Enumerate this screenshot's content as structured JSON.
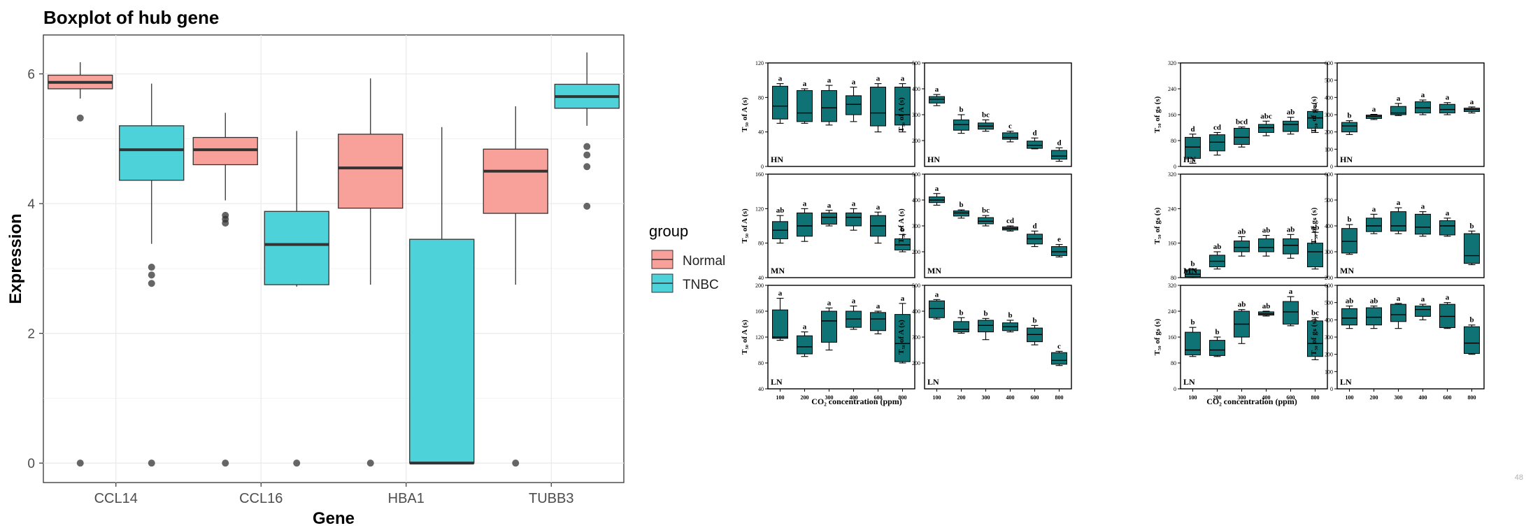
{
  "chart_data": [
    {
      "type": "boxplot",
      "title": "Boxplot of hub gene",
      "xlabel": "Gene",
      "ylabel": "Expression",
      "ylim": [
        -0.3,
        6.6
      ],
      "yticks": [
        0,
        2,
        4,
        6
      ],
      "grid": true,
      "legend": {
        "title": "group",
        "position": "right",
        "entries": [
          "Normal",
          "TNBC"
        ]
      },
      "colors": {
        "Normal": "#f8a19a",
        "TNBC": "#4dd2d9"
      },
      "categories": [
        "CCL14",
        "CCL16",
        "HBA1",
        "TUBB3"
      ],
      "series": [
        {
          "name": "Normal",
          "boxes": [
            {
              "q1": 5.77,
              "median": 5.87,
              "q3": 5.98,
              "wlo": 5.62,
              "whi": 6.18,
              "out": [
                5.32,
                0
              ]
            },
            {
              "q1": 4.6,
              "median": 4.83,
              "q3": 5.02,
              "wlo": 4.05,
              "whi": 5.4,
              "out": [
                3.82,
                3.76,
                3.7,
                0
              ]
            },
            {
              "q1": 3.93,
              "median": 4.55,
              "q3": 5.07,
              "wlo": 2.75,
              "whi": 5.93,
              "out": [
                0
              ]
            },
            {
              "q1": 3.85,
              "median": 4.5,
              "q3": 4.84,
              "wlo": 2.75,
              "whi": 5.5,
              "out": [
                0
              ]
            }
          ]
        },
        {
          "name": "TNBC",
          "boxes": [
            {
              "q1": 4.36,
              "median": 4.83,
              "q3": 5.2,
              "wlo": 3.38,
              "whi": 5.85,
              "out": [
                3.02,
                2.9,
                2.77,
                0
              ]
            },
            {
              "q1": 2.75,
              "median": 3.37,
              "q3": 3.88,
              "wlo": 2.72,
              "whi": 5.12,
              "out": [
                0
              ]
            },
            {
              "q1": 0.0,
              "median": 0.0,
              "q3": 3.45,
              "wlo": 0.0,
              "whi": 5.18,
              "out": []
            },
            {
              "q1": 5.47,
              "median": 5.65,
              "q3": 5.84,
              "wlo": 5.2,
              "whi": 6.33,
              "out": [
                4.88,
                4.75,
                4.57,
                3.96
              ]
            }
          ]
        }
      ]
    },
    {
      "type": "boxplot-grid",
      "color": "#0f7376",
      "xticks": [
        "100",
        "200",
        "300",
        "400",
        "600",
        "800"
      ],
      "xlabel_left": "CO₂ concentration (ppm)",
      "xlabel_right": "CO₂ concentration (ppm)",
      "corner_mark": "48",
      "panels": [
        {
          "label": "HN",
          "ylabel": "T₅₀ of A (s)",
          "ylim": [
            0,
            120
          ],
          "yticks": [
            0,
            40,
            80,
            120
          ],
          "letters": [
            "a",
            "a",
            "a",
            "a",
            "a",
            "a"
          ],
          "boxes": [
            [
              50,
              55,
              70,
              93,
              96
            ],
            [
              50,
              52,
              62,
              88,
              90
            ],
            [
              48,
              52,
              68,
              88,
              94
            ],
            [
              52,
              60,
              72,
              82,
              92
            ],
            [
              40,
              47,
              62,
              92,
              96
            ],
            [
              40,
              48,
              60,
              92,
              96
            ]
          ]
        },
        {
          "label": "HN",
          "ylabel": "T₅₀ of A (s)",
          "ylim": [
            100,
            500
          ],
          "yticks": [
            200,
            300,
            400,
            500
          ],
          "letters": [
            "a",
            "b",
            "bc",
            "c",
            "d",
            "d"
          ],
          "boxes": [
            [
              335,
              345,
              360,
              370,
              378
            ],
            [
              228,
              240,
              262,
              280,
              300
            ],
            [
              236,
              244,
              256,
              268,
              280
            ],
            [
              195,
              205,
              212,
              230,
              236
            ],
            [
              168,
              170,
              182,
              198,
              210
            ],
            [
              120,
              128,
              140,
              162,
              172
            ]
          ]
        },
        {
          "label": "HN",
          "ylabel": "T₅₀ of gₛ (s)",
          "ylim": [
            0,
            320
          ],
          "yticks": [
            0,
            80,
            160,
            240,
            320
          ],
          "letters": [
            "d",
            "cd",
            "bcd",
            "abc",
            "ab",
            "a"
          ],
          "boxes": [
            [
              10,
              25,
              60,
              90,
              100
            ],
            [
              35,
              48,
              75,
              98,
              105
            ],
            [
              60,
              68,
              90,
              118,
              122
            ],
            [
              95,
              105,
              120,
              130,
              140
            ],
            [
              100,
              108,
              130,
              140,
              152
            ],
            [
              105,
              118,
              150,
              170,
              175
            ]
          ]
        },
        {
          "label": "HN",
          "ylabel": "T₅₀ of gₛ (s)",
          "ylim": [
            0,
            600
          ],
          "yticks": [
            0,
            100,
            200,
            300,
            400,
            500,
            600
          ],
          "letters": [
            "b",
            "a",
            "a",
            "a",
            "a",
            "a"
          ],
          "boxes": [
            [
              185,
              200,
              235,
              255,
              265
            ],
            [
              272,
              278,
              290,
              298,
              302
            ],
            [
              295,
              300,
              310,
              348,
              365
            ],
            [
              300,
              310,
              340,
              375,
              385
            ],
            [
              300,
              310,
              330,
              360,
              370
            ],
            [
              310,
              318,
              330,
              338,
              345
            ]
          ]
        },
        {
          "label": "MN",
          "ylabel": "T₅₀ of A (s)",
          "ylim": [
            40,
            160
          ],
          "yticks": [
            40,
            80,
            120,
            160
          ],
          "letters": [
            "ab",
            "a",
            "a",
            "a",
            "a",
            "b"
          ],
          "boxes": [
            [
              80,
              85,
              95,
              105,
              112
            ],
            [
              82,
              88,
              100,
              115,
              120
            ],
            [
              100,
              102,
              110,
              115,
              118
            ],
            [
              95,
              100,
              110,
              115,
              120
            ],
            [
              80,
              88,
              100,
              112,
              116
            ],
            [
              70,
              72,
              78,
              85,
              90
            ]
          ]
        },
        {
          "label": "MN",
          "ylabel": "T₅₀ of A (s)",
          "ylim": [
            100,
            500
          ],
          "yticks": [
            200,
            300,
            400,
            500
          ],
          "letters": [
            "a",
            "b",
            "bc",
            "cd",
            "d",
            "e"
          ],
          "boxes": [
            [
              380,
              390,
              400,
              412,
              425
            ],
            [
              330,
              338,
              350,
              358,
              362
            ],
            [
              300,
              308,
              318,
              332,
              340
            ],
            [
              280,
              284,
              290,
              296,
              300
            ],
            [
              220,
              230,
              250,
              268,
              280
            ],
            [
              180,
              185,
              200,
              220,
              228
            ]
          ]
        },
        {
          "label": "MN",
          "ylabel": "T₅₀ of gₛ (s)",
          "ylim": [
            80,
            320
          ],
          "yticks": [
            80,
            160,
            240,
            320
          ],
          "letters": [
            "b",
            "ab",
            "ab",
            "ab",
            "ab",
            "ab"
          ],
          "boxes": [
            [
              80,
              82,
              88,
              98,
              100
            ],
            [
              100,
              105,
              118,
              132,
              140
            ],
            [
              130,
              140,
              150,
              165,
              175
            ],
            [
              130,
              140,
              150,
              170,
              178
            ],
            [
              125,
              135,
              155,
              170,
              180
            ],
            [
              100,
              105,
              140,
              160,
              185
            ]
          ]
        },
        {
          "label": "MN",
          "ylabel": "T₅₀ of gₛ (s)",
          "ylim": [
            200,
            600
          ],
          "yticks": [
            200,
            300,
            400,
            500,
            600
          ],
          "letters": [
            "b",
            "a",
            "a",
            "a",
            "a",
            "b"
          ],
          "boxes": [
            [
              290,
              295,
              340,
              390,
              405
            ],
            [
              370,
              378,
              400,
              430,
              445
            ],
            [
              370,
              380,
              400,
              455,
              470
            ],
            [
              360,
              368,
              395,
              445,
              455
            ],
            [
              360,
              365,
              400,
              420,
              430
            ],
            [
              250,
              255,
              285,
              370,
              380
            ]
          ]
        },
        {
          "label": "LN",
          "ylabel": "T₅₀ of A (s)",
          "ylim": [
            40,
            200
          ],
          "yticks": [
            40,
            80,
            120,
            160,
            200
          ],
          "letters": [
            "a",
            "a",
            "a",
            "a",
            "a",
            "a"
          ],
          "boxes": [
            [
              115,
              118,
              120,
              162,
              180
            ],
            [
              90,
              94,
              105,
              122,
              128
            ],
            [
              100,
              112,
              145,
              160,
              165
            ],
            [
              132,
              135,
              148,
              160,
              168
            ],
            [
              125,
              130,
              148,
              158,
              160
            ],
            [
              80,
              82,
              110,
              155,
              172
            ]
          ]
        },
        {
          "label": "LN",
          "ylabel": "T₅₀ of A (s)",
          "ylim": [
            100,
            500
          ],
          "yticks": [
            200,
            300,
            400,
            500
          ],
          "letters": [
            "a",
            "b",
            "b",
            "b",
            "b",
            "c"
          ],
          "boxes": [
            [
              370,
              375,
              410,
              440,
              445
            ],
            [
              315,
              320,
              330,
              360,
              375
            ],
            [
              290,
              320,
              345,
              365,
              372
            ],
            [
              320,
              325,
              340,
              355,
              365
            ],
            [
              270,
              282,
              310,
              335,
              345
            ],
            [
              190,
              195,
              210,
              240,
              245
            ]
          ]
        },
        {
          "label": "LN",
          "ylabel": "T₅₀ of gₛ (s)",
          "ylim": [
            0,
            320
          ],
          "yticks": [
            0,
            80,
            160,
            240,
            320
          ],
          "letters": [
            "b",
            "b",
            "ab",
            "ab",
            "a",
            "bc"
          ],
          "boxes": [
            [
              100,
              105,
              120,
              175,
              190
            ],
            [
              100,
              103,
              120,
              150,
              160
            ],
            [
              140,
              160,
              200,
              240,
              245
            ],
            [
              225,
              228,
              232,
              238,
              240
            ],
            [
              195,
              200,
              238,
              270,
              285
            ],
            [
              90,
              100,
              140,
              210,
              220
            ]
          ]
        },
        {
          "label": "LN",
          "ylabel": "T₅₀ of gₛ (s)",
          "ylim": [
            0,
            600
          ],
          "yticks": [
            0,
            100,
            200,
            300,
            400,
            500,
            600
          ],
          "letters": [
            "ab",
            "ab",
            "a",
            "a",
            "a",
            "b"
          ],
          "boxes": [
            [
              350,
              370,
              410,
              465,
              480
            ],
            [
              350,
              370,
              415,
              470,
              480
            ],
            [
              350,
              390,
              430,
              490,
              495
            ],
            [
              400,
              420,
              460,
              480,
              490
            ],
            [
              350,
              355,
              420,
              490,
              500
            ],
            [
              200,
              205,
              265,
              360,
              370
            ]
          ]
        }
      ]
    }
  ]
}
